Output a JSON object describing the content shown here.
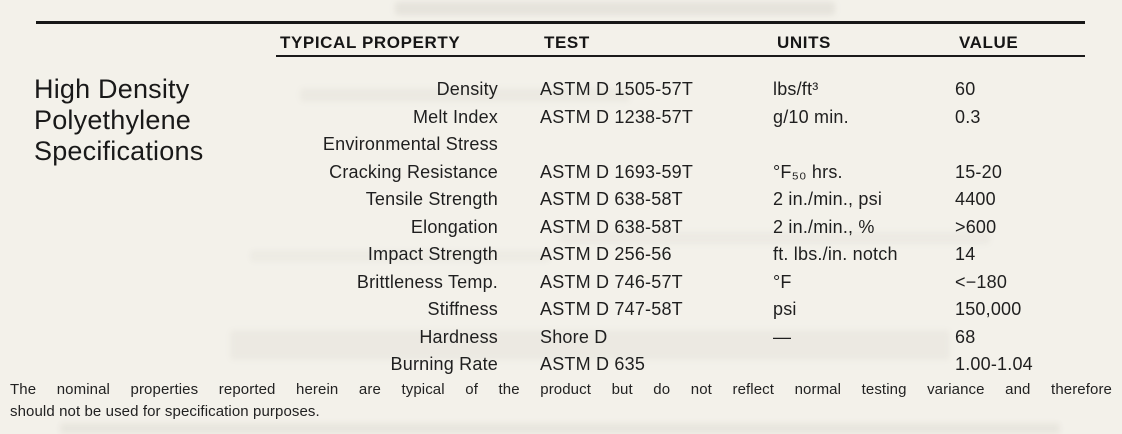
{
  "document": {
    "background_color": "#f3f1ea",
    "ink_color": "#1f1f1f"
  },
  "title": {
    "line1": "High Density",
    "line2": "Polyethylene",
    "line3": "Specifications"
  },
  "table": {
    "headers": {
      "property": "TYPICAL PROPERTY",
      "test": "TEST",
      "units": "UNITS",
      "value": "VALUE"
    },
    "rows": [
      {
        "property": "Density",
        "test": "ASTM D 1505-57T",
        "units": "lbs/ft³",
        "value": "60"
      },
      {
        "property": "Melt Index",
        "test": "ASTM D 1238-57T",
        "units": "g/10 min.",
        "value": "0.3"
      },
      {
        "property_line1": "Environmental Stress",
        "property_line2": "Cracking Resistance",
        "test": "ASTM D 1693-59T",
        "units": "°F₅₀ hrs.",
        "value": "15-20"
      },
      {
        "property": "Tensile Strength",
        "test": "ASTM D 638-58T",
        "units": "2 in./min., psi",
        "value": "4400"
      },
      {
        "property": "Elongation",
        "test": "ASTM D 638-58T",
        "units": "2 in./min., %",
        "value": ">600"
      },
      {
        "property": "Impact Strength",
        "test": "ASTM D 256-56",
        "units": "ft. lbs./in. notch",
        "value": "14"
      },
      {
        "property": "Brittleness Temp.",
        "test": "ASTM D 746-57T",
        "units": "°F",
        "value": "<−180"
      },
      {
        "property": "Stiffness",
        "test": "ASTM D 747-58T",
        "units": "psi",
        "value": "150,000"
      },
      {
        "property": "Hardness",
        "test": "Shore D",
        "units": "—",
        "value": "68"
      },
      {
        "property": "Burning Rate",
        "test": "ASTM D 635",
        "units": "",
        "value": "1.00-1.04"
      }
    ]
  },
  "footnote": {
    "line1": "The nominal properties reported herein are typical of the product but do not reflect normal testing variance and therefore",
    "line2": "should not be used for specification purposes."
  }
}
